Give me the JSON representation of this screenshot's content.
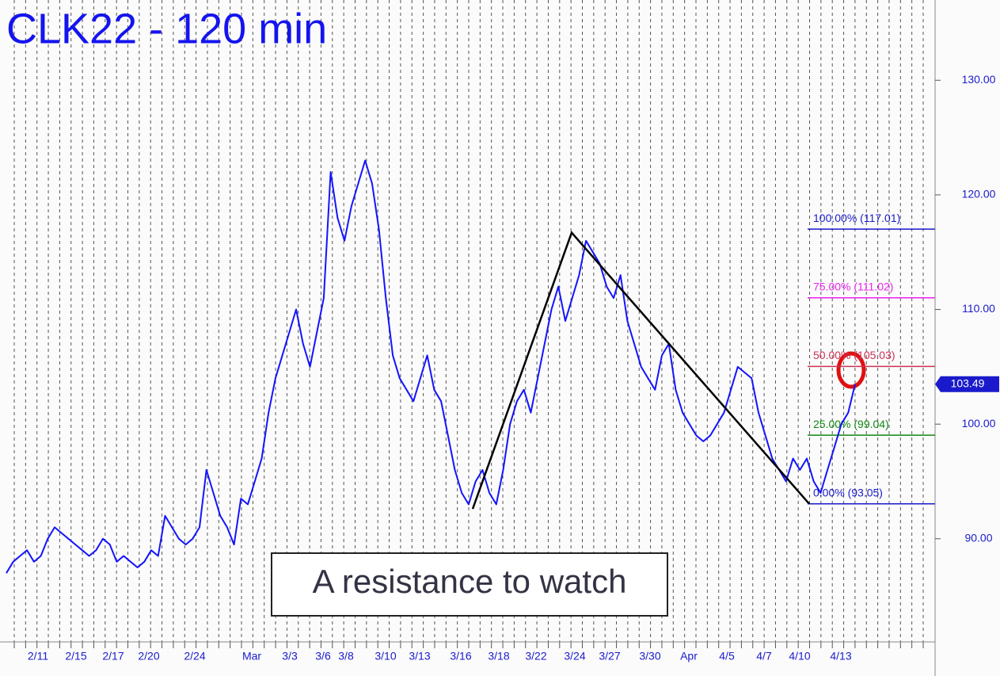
{
  "chart_data": {
    "type": "line",
    "title": "CLK22 - 120 min",
    "x_labels": [
      "2/11",
      "2/15",
      "2/17",
      "2/20",
      "2/24",
      "Mar",
      "3/3",
      "3/6",
      "3/8",
      "3/10",
      "3/13",
      "3/16",
      "3/18",
      "3/22",
      "3/24",
      "3/27",
      "3/30",
      "Apr",
      "4/5",
      "4/7",
      "4/10",
      "4/13"
    ],
    "series": [
      {
        "name": "CLK22",
        "color": "#1414ff",
        "values": [
          87,
          88,
          88.5,
          89,
          88,
          88.5,
          90,
          91,
          90.5,
          90,
          89.5,
          89,
          88.5,
          89,
          90,
          89.5,
          88,
          88.5,
          88,
          87.5,
          88,
          89,
          88.5,
          92,
          91,
          90,
          89.5,
          90,
          91,
          96,
          94,
          92,
          91,
          89.5,
          93.5,
          93,
          95,
          97,
          101,
          104,
          106,
          108,
          110,
          107,
          105,
          108,
          111,
          122,
          118,
          116,
          119,
          121,
          123,
          121,
          117,
          111,
          106,
          104,
          103,
          102,
          104,
          106,
          103,
          102,
          99,
          96,
          94,
          93,
          95,
          96,
          94,
          93,
          96,
          100,
          102,
          103,
          101,
          104,
          107,
          110,
          112,
          109,
          111,
          113,
          116,
          115,
          114,
          112,
          111,
          113,
          109,
          107,
          105,
          104,
          103,
          106,
          107,
          103,
          101,
          100,
          99,
          98.5,
          99,
          100,
          101,
          103,
          105,
          104.5,
          104,
          101,
          99,
          97,
          96,
          95,
          97,
          96,
          97,
          95,
          94,
          96,
          98,
          100,
          101,
          103.5
        ]
      }
    ],
    "ylim": [
      81,
      137
    ],
    "yticks": [
      {
        "value": 90,
        "label": "90.00"
      },
      {
        "value": 100,
        "label": "100.00"
      },
      {
        "value": 110,
        "label": "110.00"
      },
      {
        "value": 120,
        "label": "120.00"
      },
      {
        "value": 130,
        "label": "130.00"
      }
    ],
    "last_price": 103.49,
    "fib_levels": [
      {
        "label": "100.00% (117.01)",
        "value": 117.01,
        "color": "#1a1acc"
      },
      {
        "label": "75.00% (111.02)",
        "value": 111.02,
        "color": "#ee22ee"
      },
      {
        "label": "50.00% (105.03)",
        "value": 105.03,
        "color": "#cc3355"
      },
      {
        "label": "25.00% (99.04)",
        "value": 99.04,
        "color": "#118811"
      },
      {
        "label": "0.00% (93.05)",
        "value": 93.05,
        "color": "#1a1acc"
      }
    ],
    "trendline": {
      "values": [
        92.6,
        116.7,
        93.05
      ],
      "color": "#000000"
    },
    "annotation": "A resistance to watch"
  }
}
